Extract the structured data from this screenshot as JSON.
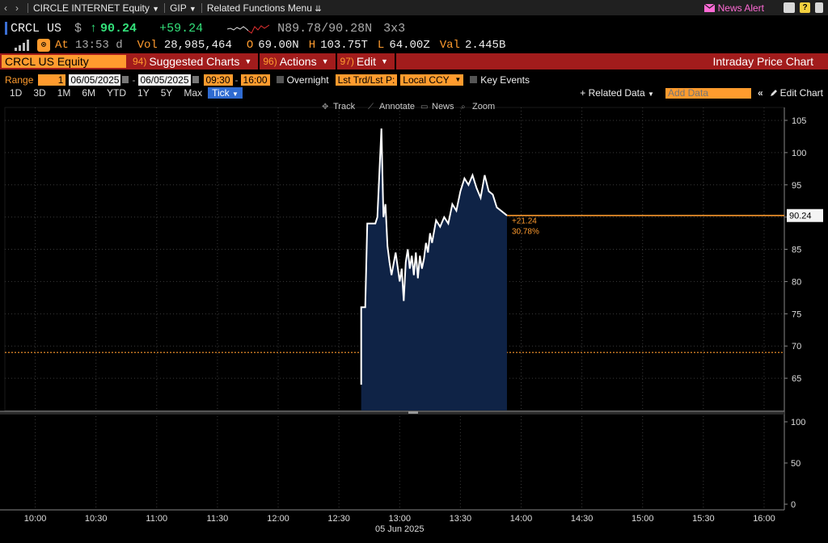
{
  "nav": {
    "security": "CIRCLE INTERNET Equity",
    "function": "GIP",
    "related": "Related Functions Menu",
    "news_alert": "News Alert",
    "help": "?"
  },
  "quote": {
    "ticker": "CRCL US",
    "currency": "$",
    "arrow": "↑",
    "last": "90.24",
    "change": "+59.24",
    "n_prices": "N89.78/90.28N",
    "size": "3x3",
    "at_label": "At",
    "time": "13:53 d",
    "vol_label": "Vol",
    "vol": "28,985,464",
    "o_label": "O",
    "open": "69.00N",
    "h_label": "H",
    "high": "103.75T",
    "l_label": "L",
    "low": "64.00Z",
    "val_label": "Val",
    "val": "2.445B"
  },
  "fbar": {
    "security": "CRCL US Equity",
    "suggested_num": "94)",
    "suggested": "Suggested Charts",
    "actions_num": "96)",
    "actions": "Actions",
    "edit_num": "97)",
    "edit": "Edit",
    "title": "Intraday Price Chart"
  },
  "range": {
    "label": "Range",
    "days": "1",
    "start": "06/05/2025",
    "dash": "-",
    "end": "06/05/2025",
    "t_start": "09:30",
    "t_end": "16:00",
    "overnight": "Overnight",
    "lst": "Lst Trd/Lst P:",
    "ccy": "Local CCY",
    "key_events": "Key Events"
  },
  "periods": [
    "1D",
    "3D",
    "1M",
    "6M",
    "YTD",
    "1Y",
    "5Y",
    "Max"
  ],
  "tick_label": "Tick",
  "related_data": "+ Related Data",
  "add_data_placeholder": "Add Data",
  "edit_chart": "Edit Chart",
  "tools": {
    "track": "Track",
    "annotate": "Annotate",
    "news": "News",
    "zoom": "Zoom"
  },
  "colors": {
    "orange": "#ff9b2e",
    "green": "#33e07a",
    "red_bar": "#a21c1c",
    "area_fill": "#0f2346",
    "price_line": "#ffffff"
  },
  "chart_data": {
    "type": "area",
    "x_tick_labels": [
      "10:00",
      "10:30",
      "11:00",
      "11:30",
      "12:00",
      "12:30",
      "13:00",
      "13:30",
      "14:00",
      "14:30",
      "15:00",
      "15:30",
      "16:00"
    ],
    "x_date_label": "05 Jun 2025",
    "y_ticks": [
      65,
      70,
      75,
      80,
      85,
      90,
      95,
      100,
      105
    ],
    "ylim": [
      60,
      106
    ],
    "lower_panel_ticks": [
      0,
      50,
      100
    ],
    "open_reference": 69.0,
    "last_price_label": "90.24",
    "change_label": "+21.24",
    "change_pct_label": "30.78%",
    "series": [
      {
        "x": [
          "12:41",
          "12:41",
          "12:43",
          "12:44",
          "12:48",
          "12:49",
          "12:51",
          "12:52",
          "12:53",
          "12:54",
          "12:55",
          "12:56",
          "12:58",
          "13:00",
          "13:01",
          "13:02",
          "13:03",
          "13:04",
          "13:05",
          "13:06",
          "13:07",
          "13:08",
          "13:09",
          "13:10",
          "13:11",
          "13:12",
          "13:13",
          "13:14",
          "13:15",
          "13:16",
          "13:18",
          "13:20",
          "13:22",
          "13:24",
          "13:26",
          "13:28",
          "13:30",
          "13:32",
          "13:34",
          "13:36",
          "13:38",
          "13:40",
          "13:42",
          "13:44",
          "13:46",
          "13:48",
          "13:50",
          "13:52",
          "13:53"
        ],
        "y": [
          64.0,
          76.0,
          76.0,
          89.0,
          89.0,
          90.0,
          103.75,
          90.0,
          92.0,
          85.5,
          83.0,
          81.0,
          84.5,
          80.0,
          82.0,
          77.0,
          83.0,
          85.0,
          82.0,
          84.0,
          81.0,
          84.5,
          80.5,
          84.0,
          82.0,
          83.5,
          86.0,
          84.5,
          87.5,
          86.0,
          89.5,
          88.5,
          90.0,
          89.0,
          92.0,
          91.0,
          94.0,
          96.0,
          95.0,
          96.5,
          94.5,
          93.0,
          96.5,
          94.0,
          93.5,
          91.5,
          91.0,
          90.5,
          90.24
        ]
      }
    ]
  }
}
